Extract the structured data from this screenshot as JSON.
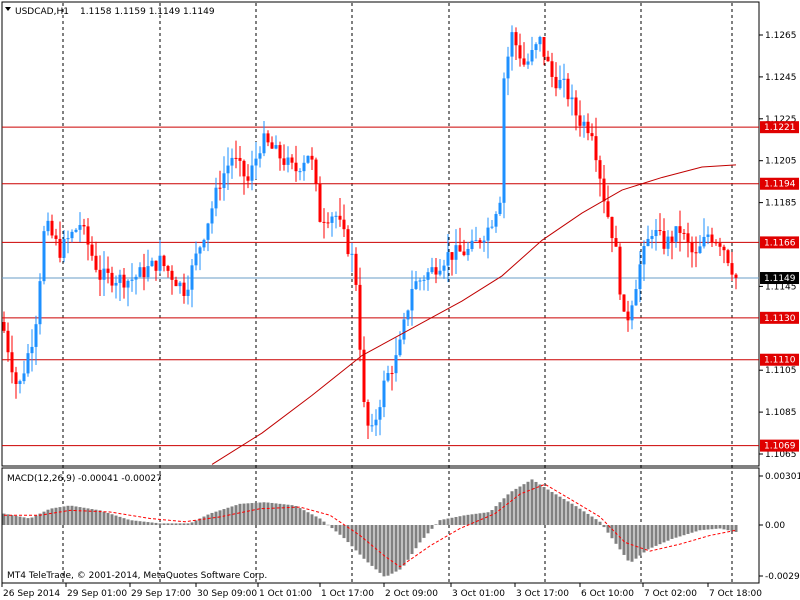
{
  "colors": {
    "background": "#ffffff",
    "frame": "#000000",
    "bull": "#1e90ff",
    "bear": "#ff0000",
    "level_line": "#cc0000",
    "level_badge": "#e00000",
    "current_line": "#6a9ec7",
    "current_badge": "#000000",
    "ma": "#c00000",
    "macd_hist": "#808080",
    "macd_signal": "#ff0000"
  },
  "header": {
    "symbol": "USDCAD,H1",
    "ohlc": "1.1158 1.1159 1.1149 1.1149"
  },
  "footer": {
    "copyright": "MT4 TeleTrade, © 2001-2014, MetaQuotes Software Corp."
  },
  "chart_data": [
    {
      "type": "candlestick",
      "symbol": "USDCAD",
      "timeframe": "H1",
      "ylim": [
        1.106,
        1.128
      ],
      "y_ticks": [
        "1.1265",
        "1.1245",
        "1.1225",
        "1.1205",
        "1.1185",
        "1.1145",
        "1.1105",
        "1.1085",
        "1.1065"
      ],
      "horizontal_levels": [
        "1.1221",
        "1.1194",
        "1.1166",
        "1.1130",
        "1.1110",
        "1.1069"
      ],
      "current_price": "1.1149",
      "x_tick_labels": [
        "26 Sep 2014",
        "29 Sep 01:00",
        "29 Sep 17:00",
        "30 Sep 09:00",
        "1 Oct 01:00",
        "1 Oct 17:00",
        "2 Oct 09:00",
        "3 Oct 01:00",
        "3 Oct 17:00",
        "6 Oct 10:00",
        "7 Oct 02:00",
        "7 Oct 18:00"
      ],
      "moving_average": {
        "color": "ma",
        "points": [
          [
            212,
            1.106
          ],
          [
            262,
            1.1075
          ],
          [
            312,
            1.1093
          ],
          [
            362,
            1.1112
          ],
          [
            412,
            1.1125
          ],
          [
            462,
            1.1138
          ],
          [
            502,
            1.115
          ],
          [
            542,
            1.1167
          ],
          [
            582,
            1.118
          ],
          [
            622,
            1.1191
          ],
          [
            662,
            1.1197
          ],
          [
            702,
            1.1202
          ],
          [
            736,
            1.1203
          ]
        ]
      },
      "price_path": [
        [
          2,
          1.1128
        ],
        [
          18,
          1.1095
        ],
        [
          35,
          1.1125
        ],
        [
          45,
          1.1175
        ],
        [
          60,
          1.1162
        ],
        [
          80,
          1.1175
        ],
        [
          100,
          1.115
        ],
        [
          130,
          1.1148
        ],
        [
          160,
          1.1157
        ],
        [
          185,
          1.1143
        ],
        [
          205,
          1.1172
        ],
        [
          220,
          1.1195
        ],
        [
          232,
          1.1207
        ],
        [
          248,
          1.1195
        ],
        [
          262,
          1.1215
        ],
        [
          280,
          1.1207
        ],
        [
          295,
          1.12
        ],
        [
          310,
          1.121
        ],
        [
          320,
          1.1178
        ],
        [
          335,
          1.118
        ],
        [
          355,
          1.1155
        ],
        [
          365,
          1.108
        ],
        [
          372,
          1.1075
        ],
        [
          385,
          1.11
        ],
        [
          398,
          1.1112
        ],
        [
          412,
          1.1145
        ],
        [
          430,
          1.1152
        ],
        [
          448,
          1.116
        ],
        [
          470,
          1.1162
        ],
        [
          490,
          1.1174
        ],
        [
          500,
          1.1188
        ],
        [
          504,
          1.1245
        ],
        [
          512,
          1.1265
        ],
        [
          525,
          1.125
        ],
        [
          540,
          1.1262
        ],
        [
          552,
          1.1245
        ],
        [
          565,
          1.124
        ],
        [
          578,
          1.1225
        ],
        [
          592,
          1.122
        ],
        [
          605,
          1.1185
        ],
        [
          615,
          1.1165
        ],
        [
          625,
          1.1125
        ],
        [
          640,
          1.1155
        ],
        [
          652,
          1.1172
        ],
        [
          665,
          1.1165
        ],
        [
          680,
          1.1172
        ],
        [
          695,
          1.1158
        ],
        [
          708,
          1.117
        ],
        [
          722,
          1.1166
        ],
        [
          736,
          1.1149
        ]
      ]
    },
    {
      "type": "bar",
      "name": "MACD(12,26,9)",
      "values_label": "-0.00041 -0.00027",
      "y_ticks": [
        "0.00301",
        "0.00",
        "-0.00293"
      ],
      "ylim": [
        -0.0032,
        0.0032
      ],
      "histogram_path": [
        [
          4,
          0.0007
        ],
        [
          30,
          0.0004
        ],
        [
          50,
          0.001
        ],
        [
          70,
          0.0012
        ],
        [
          100,
          0.0009
        ],
        [
          130,
          0.0003
        ],
        [
          160,
          0.0001
        ],
        [
          190,
          0.0001
        ],
        [
          210,
          0.0007
        ],
        [
          240,
          0.0013
        ],
        [
          265,
          0.0014
        ],
        [
          295,
          0.0012
        ],
        [
          320,
          0.0004
        ],
        [
          345,
          -0.0008
        ],
        [
          365,
          -0.002
        ],
        [
          385,
          -0.003
        ],
        [
          402,
          -0.0025
        ],
        [
          420,
          -0.001
        ],
        [
          440,
          0.0003
        ],
        [
          465,
          0.0006
        ],
        [
          490,
          0.0008
        ],
        [
          510,
          0.002
        ],
        [
          532,
          0.0028
        ],
        [
          550,
          0.0021
        ],
        [
          575,
          0.0012
        ],
        [
          600,
          0.0002
        ],
        [
          615,
          -0.001
        ],
        [
          630,
          -0.0022
        ],
        [
          648,
          -0.0014
        ],
        [
          672,
          -0.0008
        ],
        [
          700,
          -0.0003
        ],
        [
          720,
          -0.0002
        ],
        [
          736,
          -0.0004
        ]
      ],
      "signal_path": [
        [
          4,
          0.0006
        ],
        [
          40,
          0.0006
        ],
        [
          70,
          0.0009
        ],
        [
          110,
          0.0008
        ],
        [
          150,
          0.0004
        ],
        [
          185,
          0.0002
        ],
        [
          220,
          0.0005
        ],
        [
          260,
          0.001
        ],
        [
          300,
          0.0011
        ],
        [
          330,
          0.0006
        ],
        [
          360,
          -0.0006
        ],
        [
          385,
          -0.0018
        ],
        [
          400,
          -0.0024
        ],
        [
          430,
          -0.0012
        ],
        [
          460,
          -0.0002
        ],
        [
          495,
          0.0007
        ],
        [
          520,
          0.0019
        ],
        [
          545,
          0.0025
        ],
        [
          570,
          0.0016
        ],
        [
          600,
          0.0005
        ],
        [
          625,
          -0.001
        ],
        [
          650,
          -0.0015
        ],
        [
          680,
          -0.0011
        ],
        [
          710,
          -0.0006
        ],
        [
          736,
          -0.0003
        ]
      ]
    }
  ]
}
